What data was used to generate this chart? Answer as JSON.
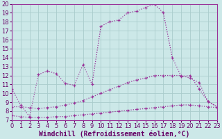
{
  "bg_color": "#cce8e8",
  "grid_color": "#aacccc",
  "line_color": "#993399",
  "xlim": [
    0,
    23
  ],
  "ylim": [
    7,
    20
  ],
  "xticks": [
    0,
    1,
    2,
    3,
    4,
    5,
    6,
    7,
    8,
    9,
    10,
    11,
    12,
    13,
    14,
    15,
    16,
    17,
    18,
    19,
    20,
    21,
    22,
    23
  ],
  "yticks": [
    7,
    8,
    9,
    10,
    11,
    12,
    13,
    14,
    15,
    16,
    17,
    18,
    19,
    20
  ],
  "series1_x": [
    0,
    1,
    2,
    3,
    4,
    5,
    6,
    7,
    8,
    9,
    10,
    11,
    12,
    13,
    14,
    15,
    16,
    17,
    18,
    19,
    20,
    21,
    22,
    23
  ],
  "series1_y": [
    10.5,
    8.7,
    7.4,
    12.1,
    12.5,
    12.2,
    11.1,
    10.9,
    13.2,
    11.0,
    17.5,
    18.0,
    18.2,
    19.0,
    19.2,
    19.6,
    20.0,
    19.0,
    14.0,
    11.9,
    12.0,
    10.5,
    9.1,
    8.5
  ],
  "series2_x": [
    0,
    1,
    2,
    3,
    4,
    5,
    6,
    7,
    8,
    9,
    10,
    11,
    12,
    13,
    14,
    15,
    16,
    17,
    18,
    19,
    20,
    21,
    22,
    23
  ],
  "series2_y": [
    8.5,
    8.5,
    8.4,
    8.3,
    8.4,
    8.5,
    8.7,
    8.9,
    9.2,
    9.6,
    10.0,
    10.4,
    10.8,
    11.2,
    11.5,
    11.7,
    12.0,
    12.0,
    12.0,
    12.0,
    11.7,
    11.2,
    9.1,
    8.5
  ],
  "series3_x": [
    0,
    1,
    2,
    3,
    4,
    5,
    6,
    7,
    8,
    9,
    10,
    11,
    12,
    13,
    14,
    15,
    16,
    17,
    18,
    19,
    20,
    21,
    22,
    23
  ],
  "series3_y": [
    7.5,
    7.4,
    7.3,
    7.3,
    7.3,
    7.4,
    7.4,
    7.5,
    7.6,
    7.7,
    7.8,
    7.9,
    8.0,
    8.1,
    8.2,
    8.3,
    8.4,
    8.5,
    8.6,
    8.7,
    8.7,
    8.6,
    8.5,
    8.4
  ],
  "xlabel": "Windchill (Refroidissement éolien,°C)",
  "font_color": "#660066",
  "font_size_label": 7.0,
  "font_size_tick": 6.0
}
